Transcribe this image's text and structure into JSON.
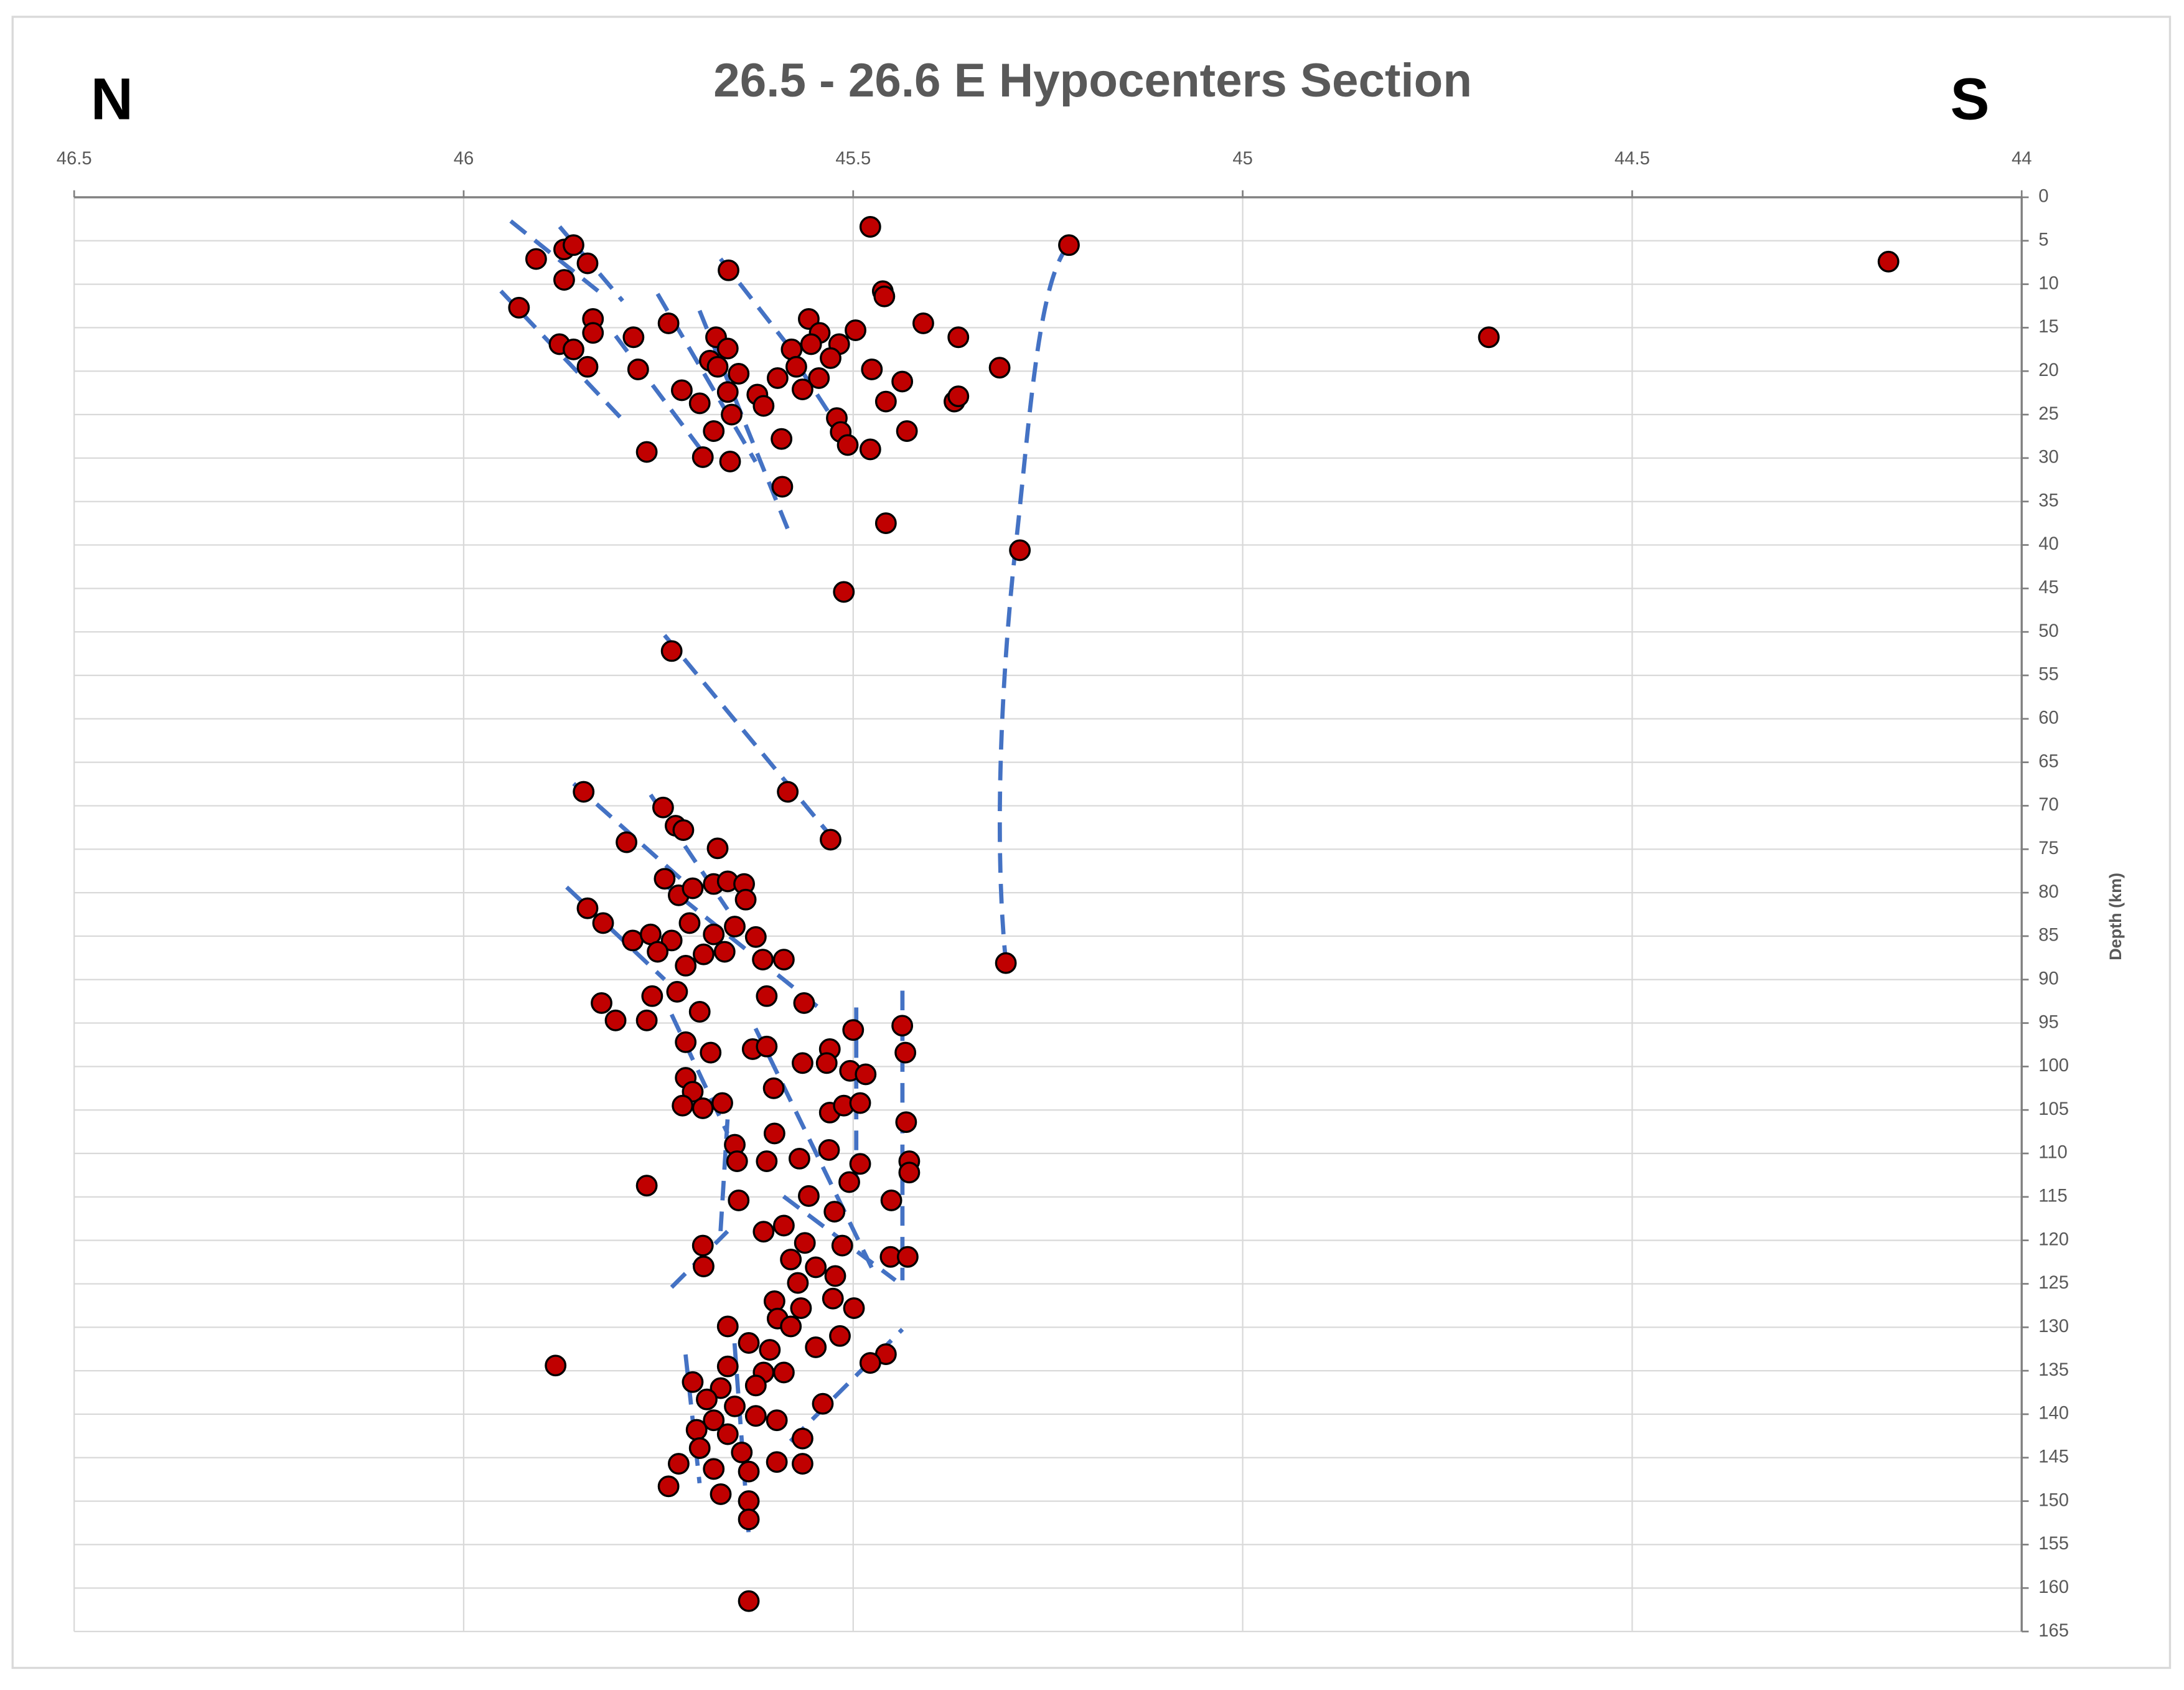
{
  "chart_data": {
    "type": "scatter",
    "title": "26.5 - 26.6 E Hypocenters Section",
    "annotations": [
      "N",
      "S"
    ],
    "y_label": "Depth (km)",
    "x_axis_position": "top",
    "y_axis_position": "right",
    "grid": true,
    "color": "#c00000",
    "xlim": [
      46.5,
      44
    ],
    "xticks": [
      46.5,
      46,
      45.5,
      45,
      44.5,
      44
    ],
    "ylim": [
      0,
      165
    ],
    "yticks": [
      0,
      5,
      10,
      15,
      20,
      25,
      30,
      35,
      40,
      45,
      50,
      55,
      60,
      65,
      70,
      75,
      80,
      85,
      90,
      95,
      100,
      105,
      110,
      115,
      120,
      125,
      130,
      135,
      140,
      145,
      150,
      155,
      160,
      165
    ],
    "x": [
      45.478,
      45.223,
      44.171,
      44.684,
      45.907,
      45.871,
      45.859,
      45.841,
      45.871,
      45.66,
      45.462,
      45.46,
      45.929,
      45.834,
      45.834,
      45.782,
      45.737,
      45.877,
      45.859,
      45.841,
      45.776,
      45.557,
      45.543,
      45.554,
      45.579,
      45.518,
      45.497,
      45.529,
      45.41,
      45.365,
      45.312,
      45.476,
      45.437,
      45.458,
      45.37,
      45.365,
      45.431,
      45.521,
      45.516,
      45.507,
      45.478,
      45.676,
      45.661,
      45.684,
      45.674,
      45.647,
      45.72,
      45.697,
      45.661,
      45.656,
      45.679,
      45.623,
      45.615,
      45.597,
      45.592,
      45.565,
      45.544,
      45.573,
      45.765,
      45.693,
      45.658,
      45.591,
      45.458,
      45.286,
      45.512,
      45.733,
      45.846,
      45.584,
      45.529,
      45.744,
      45.728,
      45.718,
      45.791,
      45.674,
      45.304,
      45.841,
      45.821,
      45.783,
      45.76,
      45.742,
      45.724,
      45.706,
      45.679,
      45.661,
      45.64,
      45.638,
      45.652,
      45.679,
      45.71,
      45.733,
      45.751,
      45.715,
      45.692,
      45.665,
      45.625,
      45.616,
      45.589,
      45.823,
      45.805,
      45.765,
      45.758,
      45.726,
      45.697,
      45.611,
      45.563,
      45.715,
      45.683,
      45.629,
      45.611,
      45.53,
      45.5,
      45.437,
      45.433,
      45.565,
      45.534,
      45.504,
      45.484,
      45.715,
      45.706,
      45.719,
      45.693,
      45.668,
      45.602,
      45.53,
      45.512,
      45.491,
      45.432,
      45.652,
      45.649,
      45.611,
      45.601,
      45.569,
      45.531,
      45.491,
      45.428,
      45.428,
      45.505,
      45.765,
      45.647,
      45.557,
      45.524,
      45.451,
      45.615,
      45.589,
      45.562,
      45.514,
      45.693,
      45.692,
      45.58,
      45.548,
      45.523,
      45.571,
      45.452,
      45.43,
      45.499,
      45.526,
      45.601,
      45.567,
      45.597,
      45.661,
      45.634,
      45.607,
      45.58,
      45.517,
      45.548,
      45.458,
      45.478,
      45.882,
      45.661,
      45.615,
      45.589,
      45.706,
      45.67,
      45.625,
      45.688,
      45.652,
      45.539,
      45.679,
      45.625,
      45.598,
      45.701,
      45.661,
      45.565,
      45.697,
      45.643,
      45.598,
      45.565,
      45.724,
      45.679,
      45.634,
      45.737,
      45.67,
      45.634,
      45.634,
      45.634
    ],
    "values": [
      3.4,
      5.5,
      7.4,
      16.1,
      7.1,
      6,
      5.5,
      7.6,
      9.5,
      8.4,
      10.8,
      11.4,
      12.7,
      14,
      15.6,
      16.1,
      14.5,
      16.9,
      17.5,
      19.5,
      19.8,
      14,
      15.6,
      16.9,
      17.5,
      16.9,
      15.3,
      18.5,
      14.5,
      16.1,
      19.6,
      19.8,
      21.2,
      23.5,
      23.5,
      22.9,
      26.9,
      25.4,
      27,
      28.5,
      29,
      16.1,
      17.4,
      18.8,
      19.5,
      20.3,
      22.2,
      23.7,
      22.4,
      25,
      26.9,
      22.7,
      24,
      20.8,
      27.8,
      22.1,
      20.8,
      19.5,
      29.3,
      29.9,
      30.4,
      33.3,
      37.5,
      40.6,
      45.4,
      52.2,
      68.4,
      68.4,
      73.9,
      70.2,
      72.3,
      72.8,
      74.2,
      74.9,
      88.1,
      81.8,
      83.5,
      85.5,
      84.8,
      78.4,
      80.3,
      79.5,
      79,
      78.7,
      79,
      80.8,
      83.9,
      84.8,
      83.5,
      85.5,
      86.8,
      88.4,
      87.1,
      86.8,
      85.1,
      87.7,
      87.7,
      92.7,
      94.7,
      94.7,
      91.9,
      91.4,
      93.7,
      91.9,
      92.7,
      97.2,
      98.4,
      98,
      97.7,
      98,
      95.8,
      95.3,
      98.4,
      99.6,
      99.6,
      100.5,
      100.9,
      101.3,
      102.9,
      104.5,
      104.8,
      104.2,
      102.5,
      105.3,
      104.5,
      104.2,
      106.4,
      109,
      110.9,
      110.9,
      107.7,
      110.6,
      109.6,
      111.2,
      110.9,
      112.2,
      113.3,
      113.7,
      115.4,
      114.9,
      116.7,
      115.4,
      119,
      118.3,
      120.3,
      120.6,
      120.6,
      123,
      122.2,
      123.1,
      124.1,
      124.9,
      121.9,
      121.9,
      127.8,
      126.7,
      127,
      127.8,
      129,
      129.9,
      131.8,
      132.6,
      129.9,
      131,
      132.3,
      133.1,
      134.1,
      134.4,
      134.5,
      135.2,
      135.2,
      136.3,
      137,
      136.7,
      138.3,
      139.1,
      138.8,
      140.7,
      140.2,
      140.7,
      141.8,
      142.3,
      142.8,
      143.9,
      144.4,
      145.5,
      145.7,
      145.7,
      146.3,
      146.6,
      148.3,
      149.2,
      150,
      152.1,
      161.5
    ]
  }
}
